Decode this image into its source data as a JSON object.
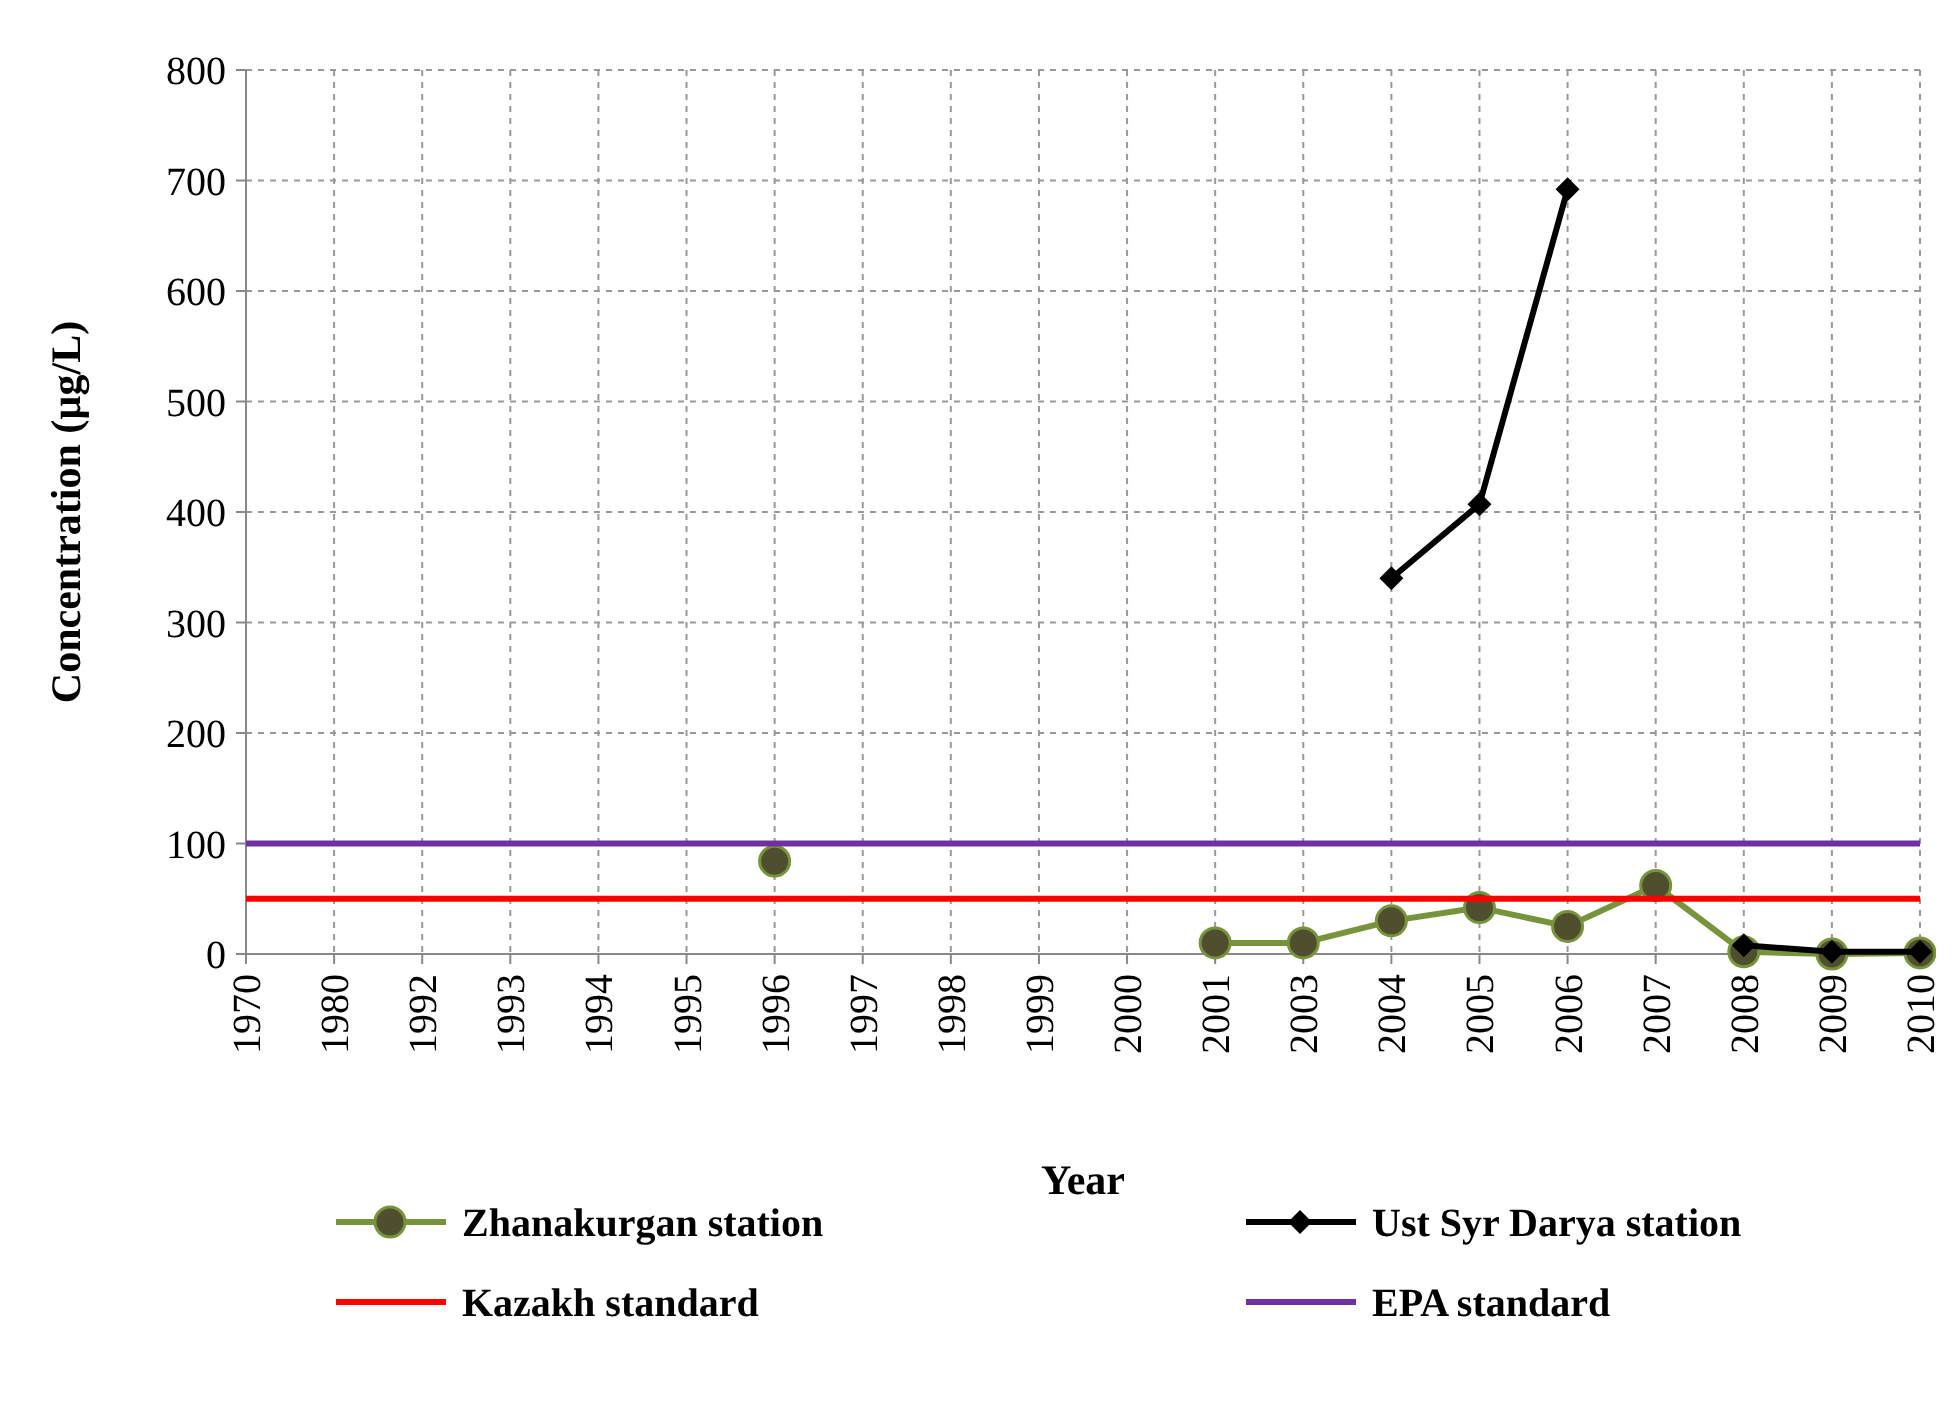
{
  "chart_data": {
    "type": "line",
    "xlabel": "Year",
    "ylabel": "Concentration (µg/L)",
    "categories": [
      "1970",
      "1980",
      "1992",
      "1993",
      "1994",
      "1995",
      "1996",
      "1997",
      "1998",
      "1999",
      "2000",
      "2001",
      "2003",
      "2004",
      "2005",
      "2006",
      "2007",
      "2008",
      "2009",
      "2010"
    ],
    "series": [
      {
        "name": "Zhanakurgan station",
        "color": "#77933c",
        "marker": "circle",
        "values": [
          null,
          null,
          null,
          null,
          null,
          null,
          84,
          null,
          null,
          null,
          null,
          10,
          10,
          30,
          42,
          25,
          62,
          2,
          0,
          1
        ]
      },
      {
        "name": "Ust Syr Darya station",
        "color": "#000000",
        "marker": "diamond",
        "values": [
          null,
          null,
          null,
          null,
          null,
          null,
          null,
          null,
          null,
          null,
          null,
          null,
          null,
          340,
          407,
          692,
          null,
          8,
          2,
          2
        ]
      },
      {
        "name": "Kazakh standard",
        "color": "#ff0000",
        "marker": "none",
        "values": [
          50,
          50,
          50,
          50,
          50,
          50,
          50,
          50,
          50,
          50,
          50,
          50,
          50,
          50,
          50,
          50,
          50,
          50,
          50,
          50
        ]
      },
      {
        "name": "EPA standard",
        "color": "#7030a0",
        "marker": "none",
        "values": [
          100,
          100,
          100,
          100,
          100,
          100,
          100,
          100,
          100,
          100,
          100,
          100,
          100,
          100,
          100,
          100,
          100,
          100,
          100,
          100
        ]
      }
    ],
    "ylim": [
      0,
      800
    ],
    "yticks": [
      0,
      100,
      200,
      300,
      400,
      500,
      600,
      700,
      800
    ],
    "grid": true,
    "legend": "bottom"
  }
}
